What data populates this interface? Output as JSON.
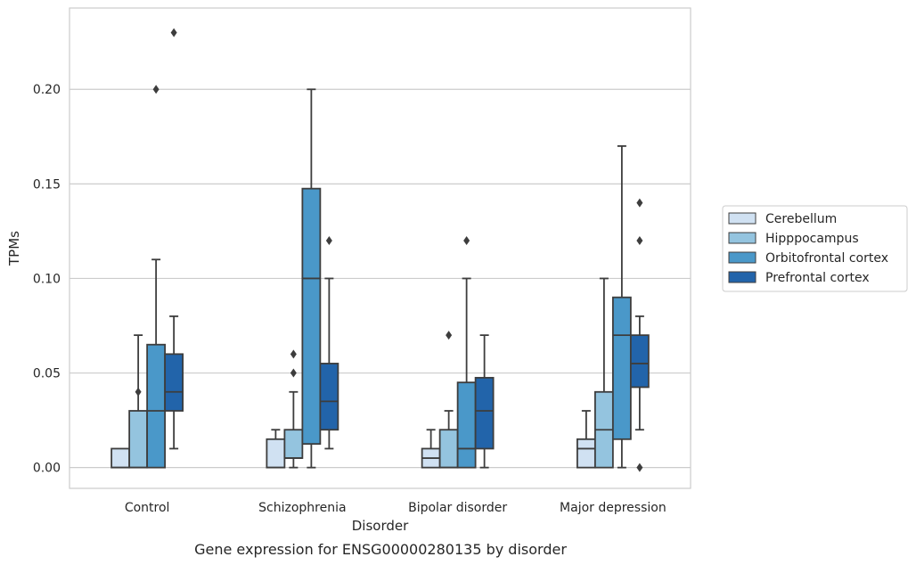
{
  "caption": "Gene expression for ENSG00000280135 by disorder",
  "chart_data": {
    "type": "box",
    "xlabel": "Disorder",
    "ylabel": "TPMs",
    "categories": [
      "Control",
      "Schizophrenia",
      "Bipolar disorder",
      "Major depression"
    ],
    "ylim": [
      -0.011,
      0.243
    ],
    "yticks": [
      0.0,
      0.05,
      0.1,
      0.15,
      0.2
    ],
    "ytick_labels": [
      "0.00",
      "0.05",
      "0.10",
      "0.15",
      "0.20"
    ],
    "grid": "horizontal",
    "legend_position": "right",
    "series": [
      {
        "name": "Cerebellum",
        "color": "#d0e1f2",
        "boxes": [
          {
            "whislo": 0.0,
            "q1": 0.0,
            "med": 0.0,
            "q3": 0.01,
            "whishi": 0.01,
            "fliers": []
          },
          {
            "whislo": 0.0,
            "q1": 0.0,
            "med": 0.0,
            "q3": 0.015,
            "whishi": 0.02,
            "fliers": []
          },
          {
            "whislo": 0.0,
            "q1": 0.0,
            "med": 0.005,
            "q3": 0.01,
            "whishi": 0.02,
            "fliers": []
          },
          {
            "whislo": 0.0,
            "q1": 0.0,
            "med": 0.01,
            "q3": 0.015,
            "whishi": 0.03,
            "fliers": []
          }
        ]
      },
      {
        "name": "Hipppocampus",
        "color": "#94c4df",
        "boxes": [
          {
            "whislo": 0.0,
            "q1": 0.0,
            "med": 0.0,
            "q3": 0.03,
            "whishi": 0.07,
            "fliers": [
              0.04
            ]
          },
          {
            "whislo": 0.0,
            "q1": 0.005,
            "med": 0.005,
            "q3": 0.02,
            "whishi": 0.04,
            "fliers": [
              0.05,
              0.06
            ]
          },
          {
            "whislo": 0.0,
            "q1": 0.0,
            "med": 0.0,
            "q3": 0.02,
            "whishi": 0.03,
            "fliers": [
              0.07
            ]
          },
          {
            "whislo": 0.0,
            "q1": 0.0,
            "med": 0.02,
            "q3": 0.04,
            "whishi": 0.1,
            "fliers": []
          }
        ]
      },
      {
        "name": "Orbitofrontal cortex",
        "color": "#4a98c9",
        "boxes": [
          {
            "whislo": 0.0,
            "q1": 0.0,
            "med": 0.03,
            "q3": 0.065,
            "whishi": 0.11,
            "fliers": [
              0.2
            ]
          },
          {
            "whislo": 0.0,
            "q1": 0.0125,
            "med": 0.1,
            "q3": 0.1475,
            "whishi": 0.2,
            "fliers": []
          },
          {
            "whislo": 0.0,
            "q1": 0.0,
            "med": 0.01,
            "q3": 0.045,
            "whishi": 0.1,
            "fliers": [
              0.12
            ]
          },
          {
            "whislo": 0.0,
            "q1": 0.015,
            "med": 0.07,
            "q3": 0.09,
            "whishi": 0.17,
            "fliers": []
          }
        ]
      },
      {
        "name": "Prefrontal cortex",
        "color": "#2264aa",
        "boxes": [
          {
            "whislo": 0.01,
            "q1": 0.03,
            "med": 0.04,
            "q3": 0.06,
            "whishi": 0.08,
            "fliers": [
              0.23
            ]
          },
          {
            "whislo": 0.01,
            "q1": 0.02,
            "med": 0.035,
            "q3": 0.055,
            "whishi": 0.1,
            "fliers": [
              0.12
            ]
          },
          {
            "whislo": 0.0,
            "q1": 0.01,
            "med": 0.03,
            "q3": 0.0475,
            "whishi": 0.07,
            "fliers": []
          },
          {
            "whislo": 0.02,
            "q1": 0.0425,
            "med": 0.055,
            "q3": 0.07,
            "whishi": 0.08,
            "fliers": [
              0.0,
              0.12,
              0.14
            ]
          }
        ]
      }
    ]
  }
}
